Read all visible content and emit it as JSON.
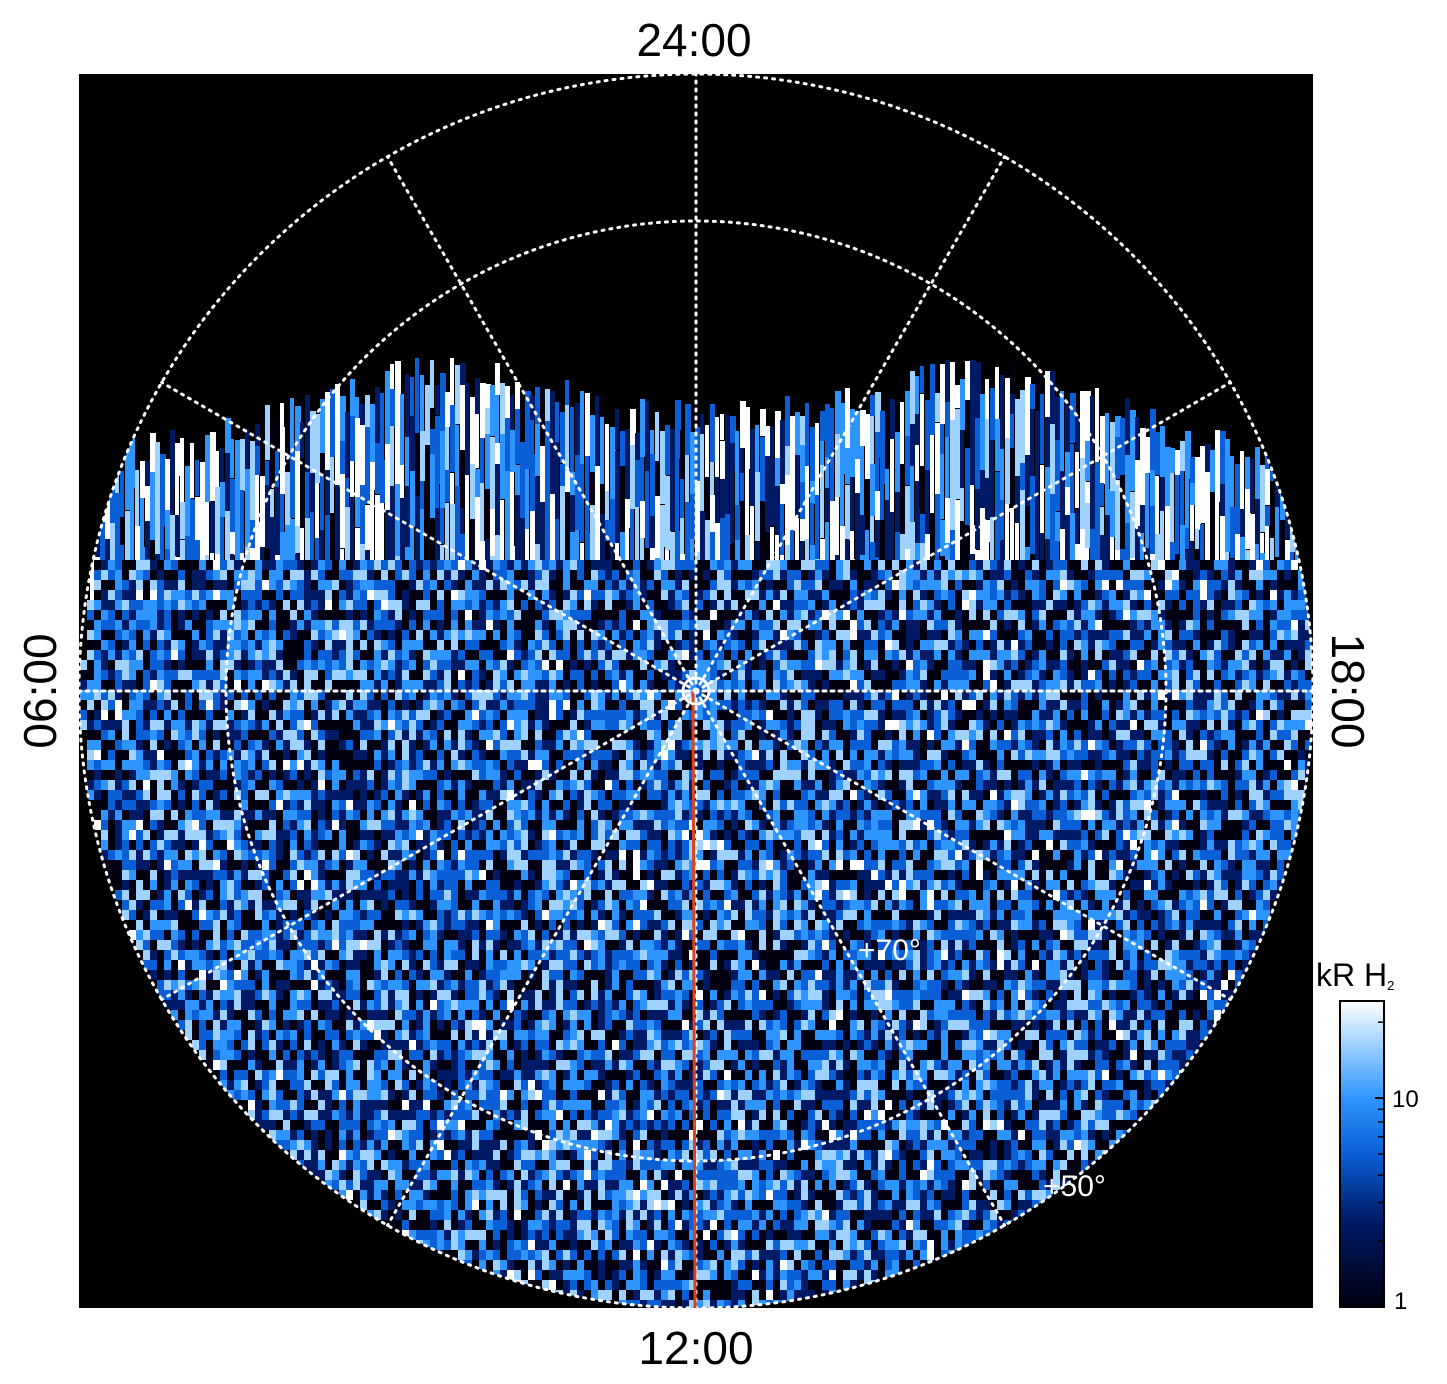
{
  "figure": {
    "background_color": "#000000",
    "grid_color": "#ffffff",
    "meridian_color": "#e0401a",
    "local_time_labels": {
      "top": "24:00",
      "bottom": "12:00",
      "left": "06:00",
      "right": "18:00"
    },
    "latitude_labels": {
      "inner": "+70°",
      "outer": "+50°"
    },
    "colorbar": {
      "title_main": "kR H",
      "title_sub": "2",
      "ticks": [
        "10",
        "1"
      ],
      "colors": [
        "#000010",
        "#001a66",
        "#0a5fd6",
        "#2e95ff",
        "#9fd2ff",
        "#ffffff"
      ]
    }
  }
}
